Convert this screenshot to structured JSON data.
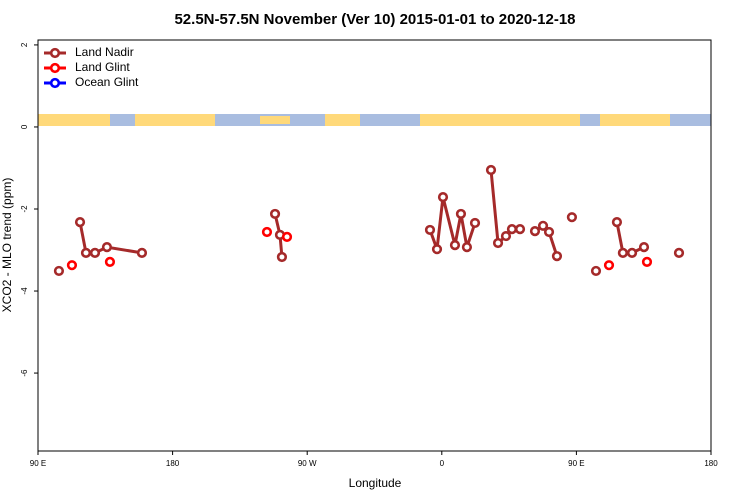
{
  "chart_data": {
    "type": "line",
    "title": "52.5N-57.5N November (Ver 10)   2015-01-01 to 2020-12-18",
    "x_label": "Longitude",
    "y_label": "XCO2 - MLO trend (ppm)",
    "xlim": [
      90,
      540
    ],
    "xticks": [
      {
        "value": 90,
        "label": "90 E"
      },
      180,
      {
        "value": 270,
        "label": "90 W"
      },
      {
        "value": 360,
        "label": "0"
      },
      {
        "value": 450,
        "label": "90 E"
      },
      {
        "value": 540,
        "label": "180"
      }
    ],
    "ylim": [
      -7.9,
      2.12
    ],
    "yticks": [
      2,
      0,
      -2,
      -4,
      -6
    ],
    "legend": "top-left",
    "series": [
      {
        "name": "Land Nadir",
        "color": "#a52a2a",
        "x": [
          104.0,
          null,
          118.1,
          122.1,
          128.1,
          136.1,
          159.5,
          null,
          248.5,
          251.8,
          253.1,
          null,
          352.1,
          356.8,
          360.8,
          368.8,
          372.8,
          376.8,
          382.2,
          null,
          392.9,
          397.6,
          402.9,
          406.9,
          412.3,
          null,
          422.3,
          427.7,
          431.7,
          437.0,
          null,
          447.0,
          null,
          463.1,
          null,
          477.1,
          481.1,
          487.2,
          495.2,
          null,
          518.6
        ],
        "values": [
          -3.51,
          null,
          -2.32,
          -3.07,
          -3.07,
          -2.93,
          -3.07,
          null,
          -2.12,
          -2.63,
          -3.17,
          null,
          -2.51,
          -2.98,
          -1.71,
          -2.88,
          -2.12,
          -2.93,
          -2.34,
          null,
          -1.05,
          -2.83,
          -2.66,
          -2.49,
          -2.49,
          null,
          -2.54,
          -2.41,
          -2.56,
          -3.15,
          null,
          -2.2,
          null,
          -3.51,
          null,
          -2.32,
          -3.07,
          -3.07,
          -2.93,
          null,
          -3.07
        ]
      },
      {
        "name": "Land Glint",
        "color": "#ff0000",
        "x": [
          112.7,
          null,
          138.1,
          null,
          243.1,
          null,
          256.5,
          null,
          471.8,
          null,
          497.2
        ],
        "values": [
          -3.37,
          null,
          -3.29,
          null,
          -2.56,
          null,
          -2.68,
          null,
          -3.37,
          null,
          -3.29
        ]
      },
      {
        "name": "Ocean Glint",
        "color": "#0000ff",
        "x": [],
        "values": []
      }
    ]
  }
}
